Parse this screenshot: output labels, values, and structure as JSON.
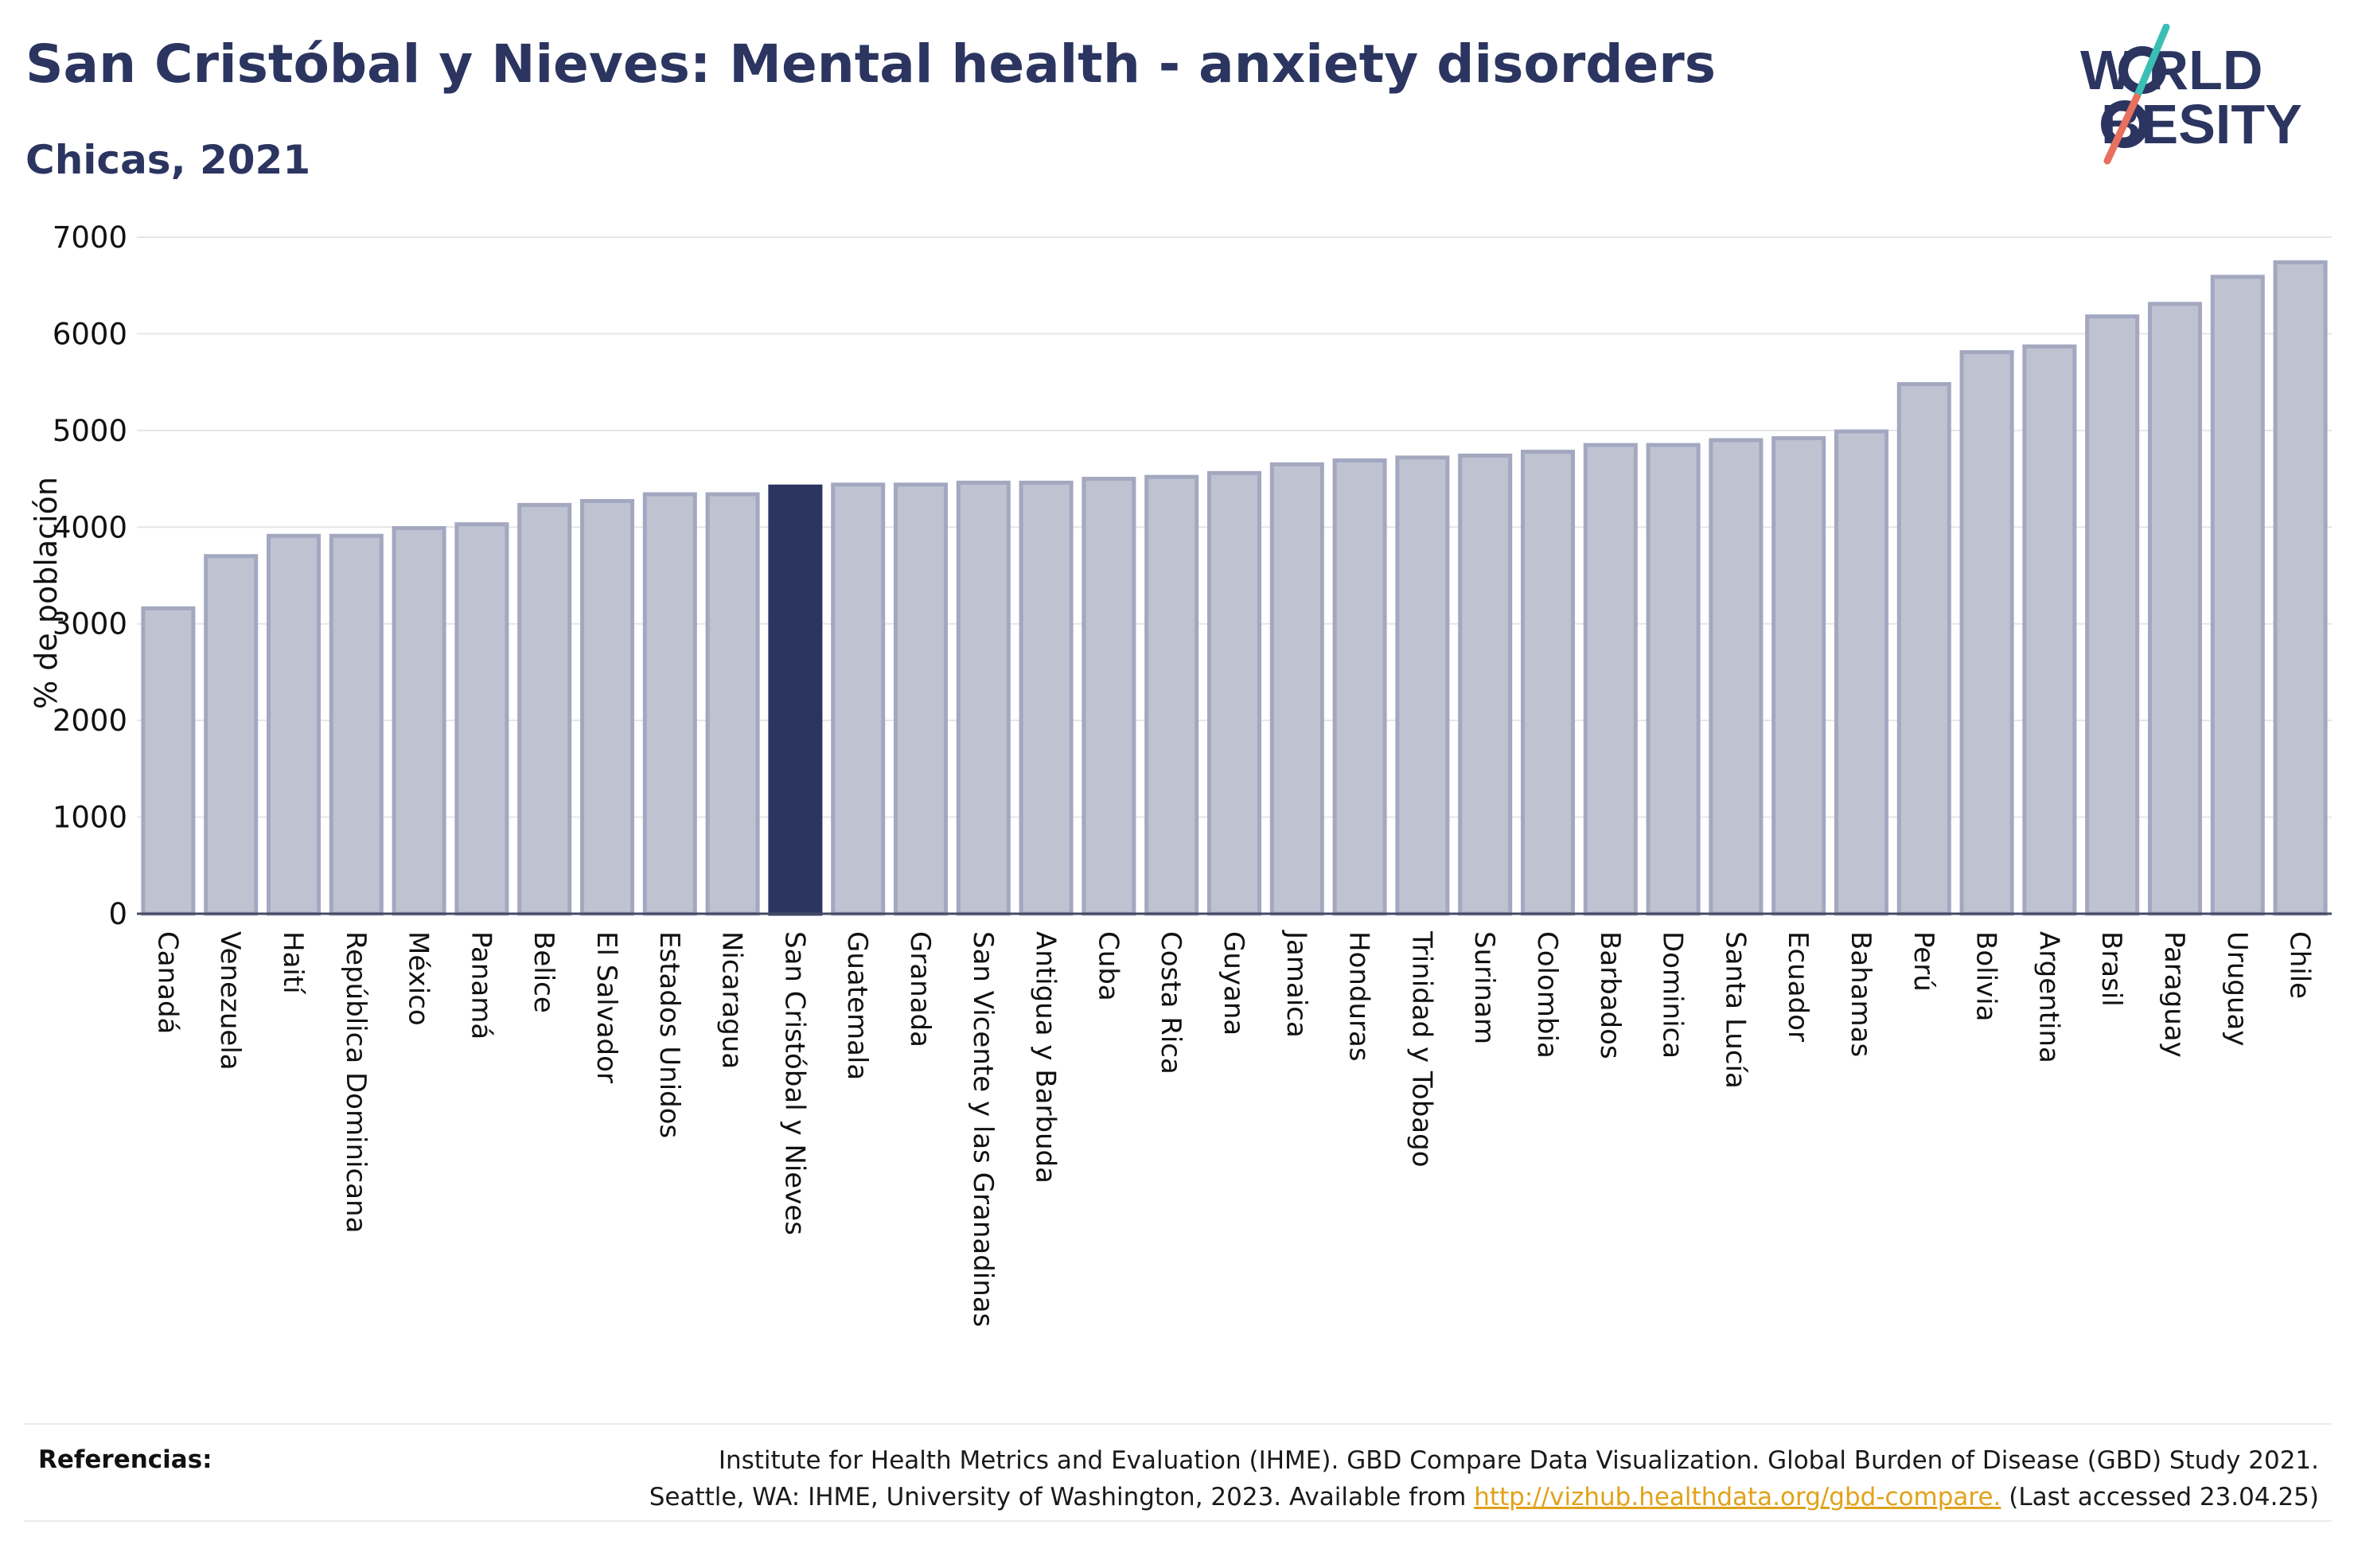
{
  "header": {
    "title": "San Cristóbal y Nieves: Mental health - anxiety disorders",
    "subtitle": "Chicas, 2021"
  },
  "logo": {
    "line1": "W RLD",
    "line2": "BESITY",
    "text": "WORLD OBESITY",
    "colors": {
      "text": "#2b3560",
      "slash_top": "#3bbfb5",
      "slash_bottom": "#e8705f"
    }
  },
  "chart_data": {
    "type": "bar",
    "title": "San Cristóbal y Nieves: Mental health - anxiety disorders",
    "subtitle": "Chicas, 2021",
    "xlabel": "",
    "ylabel": "% de población",
    "ylim": [
      0,
      7000
    ],
    "yticks": [
      0,
      1000,
      2000,
      3000,
      4000,
      5000,
      6000,
      7000
    ],
    "grid": true,
    "highlight": "San Cristóbal y Nieves",
    "colors": {
      "bar": "#bfc2d1",
      "bar_edge": "#a3a8c0",
      "highlight": "#2b3560"
    },
    "categories": [
      "Canadá",
      "Venezuela",
      "Haití",
      "República Dominicana",
      "México",
      "Panamá",
      "Belice",
      "El Salvador",
      "Estados Unidos",
      "Nicaragua",
      "San Cristóbal y Nieves",
      "Guatemala",
      "Granada",
      "San Vicente y las Granadinas",
      "Antigua y Barbuda",
      "Cuba",
      "Costa Rica",
      "Guyana",
      "Jamaica",
      "Honduras",
      "Trinidad y Tobago",
      "Surinam",
      "Colombia",
      "Barbados",
      "Dominica",
      "Santa Lucía",
      "Ecuador",
      "Bahamas",
      "Perú",
      "Bolivia",
      "Argentina",
      "Brasil",
      "Paraguay",
      "Uruguay",
      "Chile"
    ],
    "values": [
      3160,
      3700,
      3910,
      3910,
      3990,
      4030,
      4230,
      4270,
      4340,
      4340,
      4420,
      4440,
      4440,
      4460,
      4460,
      4500,
      4520,
      4560,
      4650,
      4690,
      4720,
      4740,
      4780,
      4850,
      4850,
      4900,
      4920,
      4990,
      5480,
      5810,
      5870,
      6180,
      6310,
      6590,
      6740
    ]
  },
  "footer": {
    "label": "Referencias:",
    "line1": "Institute for Health Metrics and Evaluation (IHME). GBD Compare Data Visualization. Global Burden of Disease (GBD) Study 2021.",
    "line2_before": "Seattle, WA: IHME, University of Washington, 2023. Available from ",
    "link": "http://vizhub.healthdata.org/gbd-compare.",
    "line2_after": " (Last accessed 23.04.25)"
  }
}
